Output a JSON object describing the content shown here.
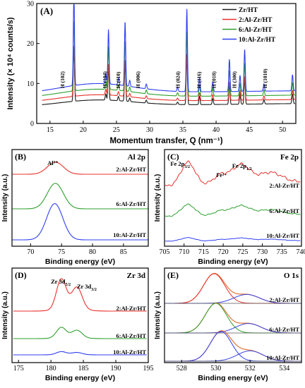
{
  "colors": {
    "black": "#1a1a1a",
    "red": "#e8312b",
    "green": "#2ea02e",
    "blue": "#2f3ff0",
    "fit_red": "#c8302a",
    "fit_green": "#2e9a2e",
    "fit_blue": "#3b46e0",
    "fit_orange": "#e06b2a"
  },
  "chart_data": [
    {
      "panel": "(A)",
      "type": "line",
      "xlabel": "Momentum transfer, Q (nm⁻¹)",
      "ylabel": "Intensity (× 10⁴ counts/s)",
      "xlim": [
        13,
        52
      ],
      "ylim": [
        0,
        30
      ],
      "xticks": [
        15,
        20,
        25,
        30,
        35,
        40,
        45,
        50
      ],
      "yticks": [
        0,
        10,
        20,
        30
      ],
      "legend_position": "top-right",
      "series": [
        {
          "name": "Zr/HT",
          "color": "black",
          "offset": 4.2,
          "slope": 1.5
        },
        {
          "name": "2:Al-Zr/HT",
          "color": "red",
          "offset": 5.2,
          "slope": 1.8
        },
        {
          "name": "6:Al-Zr/HT",
          "color": "green",
          "offset": 6.3,
          "slope": 2.1
        },
        {
          "name": "10:Al-Zr/HT",
          "color": "blue",
          "offset": 7.4,
          "slope": 2.4
        }
      ],
      "peaks": [
        {
          "q": 18.6,
          "height": 22.0
        },
        {
          "q": 23.4,
          "height": 2.5
        },
        {
          "q": 23.8,
          "height": 13.5
        },
        {
          "q": 25.3,
          "height": 1.8
        },
        {
          "q": 26.3,
          "height": 16.0
        },
        {
          "q": 27.0,
          "height": 1.5
        },
        {
          "q": 29.5,
          "height": 1.2
        },
        {
          "q": 34.2,
          "height": 1.0
        },
        {
          "q": 35.6,
          "height": 20.5
        },
        {
          "q": 37.5,
          "height": 3.5
        },
        {
          "q": 39.5,
          "height": 2.5
        },
        {
          "q": 42.0,
          "height": 8.0
        },
        {
          "q": 43.6,
          "height": 4.0
        },
        {
          "q": 44.3,
          "height": 10.5
        },
        {
          "q": 47.2,
          "height": 1.8
        },
        {
          "q": 51.5,
          "height": 4.0
        }
      ],
      "annotations": [
        {
          "text": "H (102)",
          "x": 16.8
        },
        {
          "text": "H (104)",
          "x": 23.2
        },
        {
          "text": "H (110)",
          "x": 25.2
        },
        {
          "text": "H (006)",
          "x": 28.2
        },
        {
          "text": "H (024)",
          "x": 34.2
        },
        {
          "text": "H (116)",
          "x": 37.4
        },
        {
          "text": "H (018)",
          "x": 39.6
        },
        {
          "text": "H (300)",
          "x": 42.7
        },
        {
          "text": "H (1010)",
          "x": 47.3
        }
      ]
    },
    {
      "panel": "(B)",
      "title": "Al 2p",
      "type": "line",
      "xlabel": "Binding energy (eV)",
      "ylabel": "Intensity (a.u.)",
      "xlim": [
        67,
        89
      ],
      "xticks": [
        70,
        75,
        80,
        85
      ],
      "peak_label": "Al³⁺",
      "series": [
        {
          "name": "2:Al-Zr/HT",
          "color": "red",
          "center": 74.0,
          "height": 0.45,
          "width": 1.3
        },
        {
          "name": "6:Al-Zr/HT",
          "color": "green",
          "center": 74.0,
          "height": 0.95,
          "width": 1.3
        },
        {
          "name": "10:Al-Zr/HT",
          "color": "blue",
          "center": 73.9,
          "height": 1.35,
          "width": 1.3
        }
      ]
    },
    {
      "panel": "(C)",
      "title": "Fe 2p",
      "type": "line",
      "xlabel": "Binding energy (eV)",
      "ylabel": "Intensity (a.u.)",
      "xlim": [
        705,
        740
      ],
      "xticks": [
        705,
        710,
        715,
        720,
        725,
        730,
        735,
        740
      ],
      "peak_labels": [
        {
          "text": "Fe 2p",
          "sub": "3/2",
          "x": 711
        },
        {
          "text": "Fe³⁺",
          "x": 719.5
        },
        {
          "text": "Fe 2p",
          "sub": "1/2",
          "x": 726
        }
      ],
      "series": [
        {
          "name": "2:Al-Zr/HT",
          "color": "red",
          "amp": 1.0
        },
        {
          "name": "6:Al-Zr/HT",
          "color": "green",
          "amp": 0.5
        },
        {
          "name": "10:Al-Zr/HT",
          "color": "blue",
          "amp": 0.15
        }
      ]
    },
    {
      "panel": "(D)",
      "title": "Zr 3d",
      "type": "line",
      "xlabel": "Binding energy (eV)",
      "ylabel": "Intensity (a.u.)",
      "xlim": [
        174,
        195
      ],
      "xticks": [
        175,
        180,
        185,
        190,
        195
      ],
      "peak_labels": [
        {
          "text": "Zr 3d",
          "sub": "5/2",
          "x": 181.5
        },
        {
          "text": "Zr 3d",
          "sub": "3/2",
          "x": 184
        }
      ],
      "series": [
        {
          "name": "2:Al-Zr/HT",
          "color": "red",
          "amp": 1.0
        },
        {
          "name": "6:Al-Zr/HT",
          "color": "green",
          "amp": 0.35
        },
        {
          "name": "10:Al-Zr/HT",
          "color": "blue",
          "amp": 0.1
        }
      ]
    },
    {
      "panel": "(E)",
      "title": "O 1s",
      "type": "line",
      "xlabel": "Binding energy (eV)",
      "ylabel": "Intensity (a.u.)",
      "xlim": [
        527,
        535
      ],
      "xticks": [
        528,
        530,
        532,
        534
      ],
      "series": [
        {
          "name": "2:Al-Zr/HT",
          "color": "red",
          "components": [
            {
              "center": 529.9,
              "height": 1.0
            },
            {
              "center": 531.8,
              "height": 0.3
            }
          ]
        },
        {
          "name": "6:Al-Zr/HT",
          "color": "green",
          "components": [
            {
              "center": 530.0,
              "height": 1.0
            },
            {
              "center": 531.9,
              "height": 0.32
            }
          ]
        },
        {
          "name": "10:Al-Zr/HT",
          "color": "blue",
          "components": [
            {
              "center": 530.3,
              "height": 1.0
            },
            {
              "center": 532.0,
              "height": 0.35
            }
          ]
        }
      ]
    }
  ]
}
